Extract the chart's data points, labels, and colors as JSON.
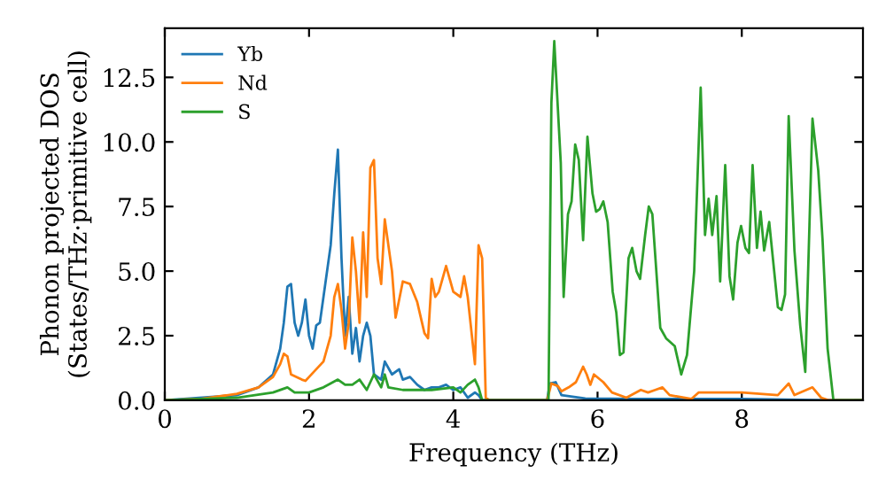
{
  "chart_data": {
    "type": "line",
    "xlabel": "Frequency (THz)",
    "ylabel": "Phonon projected DOS\n(States/THz·primitive cell)",
    "xlim": [
      0,
      9.68
    ],
    "ylim": [
      0,
      14.4
    ],
    "xticks": [
      0,
      2,
      4,
      6,
      8
    ],
    "yticks": [
      {
        "value": 0,
        "label": "0.0"
      },
      {
        "value": 2.5,
        "label": "2.5"
      },
      {
        "value": 5,
        "label": "5.0"
      },
      {
        "value": 7.5,
        "label": "7.5"
      },
      {
        "value": 10,
        "label": "10.0"
      },
      {
        "value": 12.5,
        "label": "12.5"
      }
    ],
    "grid": false,
    "legend": "top left",
    "marker": "none",
    "line_style": "solid",
    "series": [
      {
        "name": "Yb",
        "color": "#1f77b4",
        "x": [
          0,
          1,
          1.3,
          1.5,
          1.6,
          1.65,
          1.7,
          1.75,
          1.8,
          1.85,
          1.9,
          1.95,
          2.0,
          2.05,
          2.1,
          2.15,
          2.2,
          2.3,
          2.35,
          2.4,
          2.45,
          2.5,
          2.55,
          2.6,
          2.65,
          2.7,
          2.75,
          2.8,
          2.85,
          2.9,
          3.0,
          3.05,
          3.15,
          3.25,
          3.3,
          3.4,
          3.5,
          3.6,
          3.7,
          3.8,
          3.9,
          4.0,
          4.1,
          4.2,
          4.3,
          4.35,
          4.4,
          5.3,
          5.34,
          5.42,
          5.5,
          5.83,
          6.5,
          7.5,
          8.0,
          9.2,
          9.68
        ],
        "values": [
          0,
          0.2,
          0.5,
          1.0,
          2.0,
          3.0,
          4.4,
          4.5,
          3.0,
          2.5,
          3.0,
          3.9,
          2.5,
          2.0,
          2.9,
          3.0,
          4.0,
          6.0,
          8.0,
          9.7,
          5.5,
          2.5,
          4.0,
          1.8,
          2.8,
          1.5,
          2.5,
          3.0,
          2.5,
          1.0,
          0.8,
          1.5,
          1.0,
          1.2,
          0.8,
          0.9,
          0.6,
          0.4,
          0.5,
          0.5,
          0.6,
          0.4,
          0.5,
          0.1,
          0.3,
          0.2,
          0,
          0,
          0.65,
          0.7,
          0.2,
          0.07,
          0.05,
          0.05,
          0.05,
          0,
          0
        ]
      },
      {
        "name": "Nd",
        "color": "#ff7f0e",
        "x": [
          0,
          0.5,
          1.0,
          1.3,
          1.5,
          1.6,
          1.65,
          1.7,
          1.75,
          1.9,
          1.95,
          2.0,
          2.2,
          2.3,
          2.35,
          2.4,
          2.45,
          2.5,
          2.55,
          2.6,
          2.65,
          2.7,
          2.75,
          2.8,
          2.85,
          2.9,
          2.95,
          3.0,
          3.05,
          3.1,
          3.15,
          3.2,
          3.3,
          3.4,
          3.5,
          3.6,
          3.65,
          3.7,
          3.75,
          3.8,
          3.9,
          4.0,
          4.1,
          4.15,
          4.2,
          4.3,
          4.35,
          4.4,
          4.45,
          4.5,
          5.3,
          5.36,
          5.45,
          5.5,
          5.6,
          5.7,
          5.8,
          5.85,
          5.9,
          5.95,
          6.08,
          6.2,
          6.4,
          6.6,
          6.7,
          6.8,
          6.9,
          7.0,
          7.3,
          7.4,
          7.5,
          7.7,
          8.0,
          8.5,
          8.65,
          8.73,
          8.98,
          9.1,
          9.2,
          9.68
        ],
        "values": [
          0,
          0.05,
          0.25,
          0.5,
          0.9,
          1.4,
          1.8,
          1.7,
          1.0,
          0.8,
          0.75,
          0.9,
          1.5,
          2.5,
          4.0,
          4.5,
          3.5,
          2.0,
          3.0,
          6.3,
          5.0,
          3.0,
          6.5,
          4.0,
          9.0,
          9.3,
          5.5,
          4.5,
          7.0,
          6.0,
          5.0,
          3.2,
          4.6,
          4.5,
          3.8,
          2.6,
          2.4,
          4.7,
          4.0,
          4.2,
          5.2,
          4.2,
          4.0,
          4.8,
          4.0,
          1.4,
          6.0,
          5.5,
          0.1,
          0,
          0,
          0.65,
          0.55,
          0.35,
          0.5,
          0.7,
          1.3,
          1.0,
          0.6,
          1.0,
          0.7,
          0.3,
          0.1,
          0.4,
          0.3,
          0.4,
          0.5,
          0.2,
          0.05,
          0.3,
          0.3,
          0.3,
          0.3,
          0.2,
          0.65,
          0.2,
          0.5,
          0.1,
          0,
          0
        ]
      },
      {
        "name": "S",
        "color": "#2ca02c",
        "x": [
          0,
          1,
          1.5,
          1.7,
          1.8,
          2.0,
          2.2,
          2.4,
          2.5,
          2.6,
          2.7,
          2.8,
          2.85,
          2.9,
          3.0,
          3.05,
          3.1,
          3.3,
          3.5,
          3.7,
          4.0,
          4.1,
          4.2,
          4.3,
          4.35,
          4.4,
          5.32,
          5.36,
          5.4,
          5.49,
          5.53,
          5.59,
          5.64,
          5.69,
          5.74,
          5.8,
          5.86,
          5.93,
          5.98,
          6.03,
          6.08,
          6.14,
          6.21,
          6.26,
          6.31,
          6.36,
          6.43,
          6.48,
          6.54,
          6.59,
          6.66,
          6.71,
          6.76,
          6.87,
          6.95,
          7.07,
          7.16,
          7.24,
          7.34,
          7.43,
          7.49,
          7.54,
          7.59,
          7.65,
          7.7,
          7.77,
          7.83,
          7.88,
          7.94,
          7.99,
          8.05,
          8.1,
          8.15,
          8.21,
          8.26,
          8.31,
          8.38,
          8.44,
          8.5,
          8.55,
          8.6,
          8.65,
          8.73,
          8.81,
          8.88,
          8.98,
          9.06,
          9.12,
          9.19,
          9.27,
          9.68
        ],
        "values": [
          0,
          0.1,
          0.3,
          0.5,
          0.3,
          0.3,
          0.5,
          0.8,
          0.6,
          0.6,
          0.8,
          0.4,
          0.7,
          1.0,
          0.5,
          1.0,
          0.5,
          0.4,
          0.4,
          0.4,
          0.5,
          0.3,
          0.6,
          0.8,
          0.5,
          0,
          0,
          11.5,
          13.9,
          9.2,
          4.0,
          7.2,
          7.7,
          9.9,
          9.3,
          6.2,
          10.2,
          8.0,
          7.3,
          7.4,
          7.7,
          6.9,
          4.2,
          3.4,
          1.75,
          1.85,
          5.5,
          5.9,
          5.0,
          4.7,
          6.4,
          7.5,
          7.2,
          2.8,
          2.4,
          2.1,
          1.0,
          1.75,
          5.0,
          12.1,
          6.4,
          7.8,
          6.4,
          7.9,
          4.6,
          9.1,
          4.8,
          3.9,
          6.1,
          6.75,
          5.9,
          5.7,
          9.1,
          5.9,
          7.3,
          5.8,
          6.9,
          5.25,
          3.6,
          3.5,
          4.1,
          11.0,
          5.8,
          2.9,
          1.1,
          10.9,
          8.9,
          6.2,
          2.0,
          0,
          0
        ]
      }
    ]
  }
}
